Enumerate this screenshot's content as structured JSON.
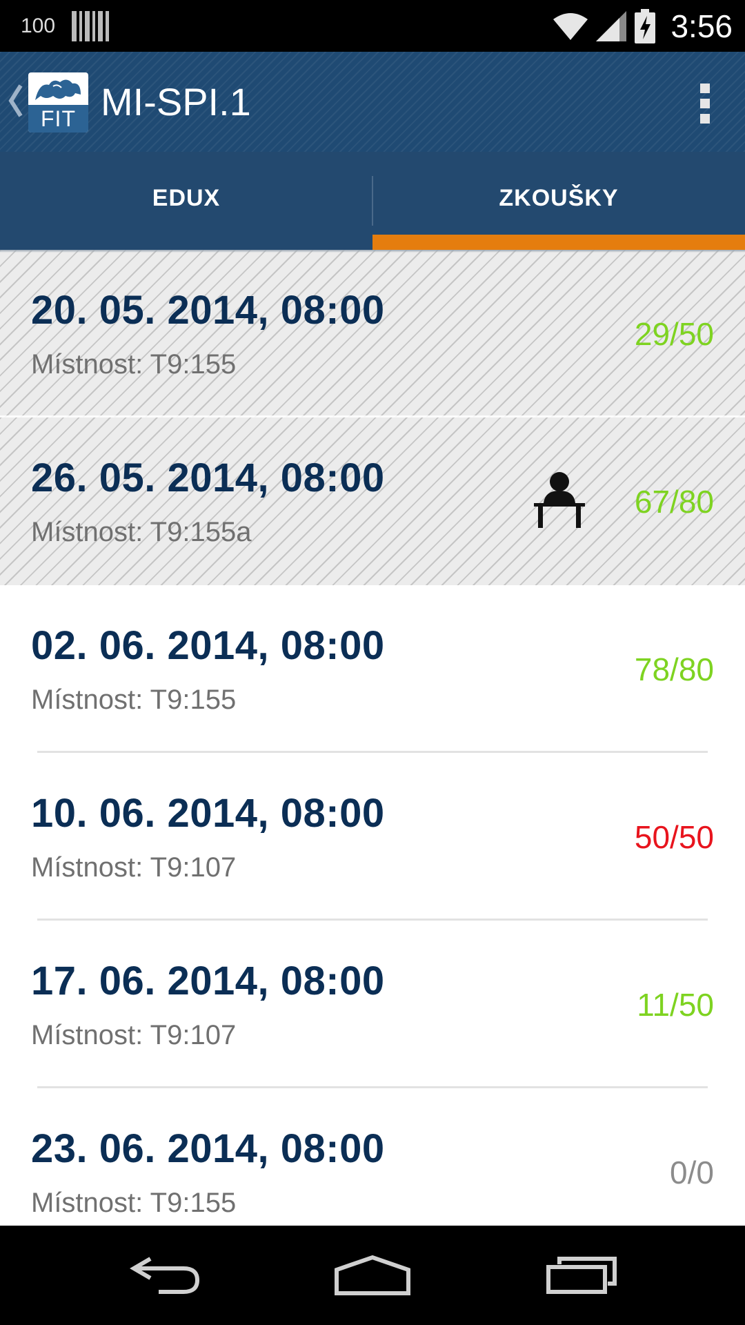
{
  "status_bar": {
    "battery_percent": "100",
    "time": "3:56"
  },
  "app_bar": {
    "logo_text": "FIT",
    "title": "MI-SPI.1"
  },
  "tabs": [
    {
      "label": "EDUX",
      "selected": false
    },
    {
      "label": "ZKOUŠKY",
      "selected": true
    }
  ],
  "colors": {
    "app_bar": "#1f4a73",
    "tab_indicator": "#e57d0e",
    "date_text": "#0b2e55",
    "capacity_available": "#7ed321",
    "capacity_full": "#e8141d",
    "capacity_empty": "#8c8c8c"
  },
  "exams": [
    {
      "date": "20. 05. 2014, 08:00",
      "room": "Místnost: T9:155",
      "capacity": "29/50",
      "capacity_status": "available",
      "past": true,
      "registered": false
    },
    {
      "date": "26. 05. 2014, 08:00",
      "room": "Místnost: T9:155a",
      "capacity": "67/80",
      "capacity_status": "available",
      "past": true,
      "registered": true,
      "registered_icon": "student-at-desk-icon"
    },
    {
      "date": "02. 06. 2014, 08:00",
      "room": "Místnost: T9:155",
      "capacity": "78/80",
      "capacity_status": "available",
      "past": false,
      "registered": false
    },
    {
      "date": "10. 06. 2014, 08:00",
      "room": "Místnost: T9:107",
      "capacity": "50/50",
      "capacity_status": "full",
      "past": false,
      "registered": false
    },
    {
      "date": "17. 06. 2014, 08:00",
      "room": "Místnost: T9:107",
      "capacity": "11/50",
      "capacity_status": "available",
      "past": false,
      "registered": false
    },
    {
      "date": "23. 06. 2014, 08:00",
      "room": "Místnost: T9:155",
      "capacity": "0/0",
      "capacity_status": "empty",
      "past": false,
      "registered": false
    }
  ],
  "nav_bar": {
    "icons": [
      "back-icon",
      "home-icon",
      "recent-apps-icon"
    ]
  }
}
